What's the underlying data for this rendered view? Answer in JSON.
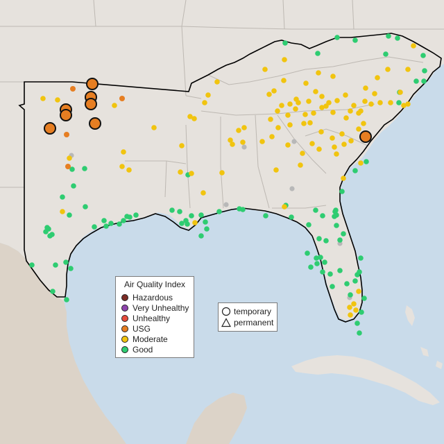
{
  "legend": {
    "title": "Air Quality Index",
    "categories": [
      {
        "label": "Hazardous",
        "color": "#7b2d26"
      },
      {
        "label": "Very Unhealthy",
        "color": "#8e44ad"
      },
      {
        "label": "Unhealthy",
        "color": "#e74c3c"
      },
      {
        "label": "USG",
        "color": "#e67e22"
      },
      {
        "label": "Moderate",
        "color": "#f1c40f"
      },
      {
        "label": "Good",
        "color": "#2ecc71"
      }
    ]
  },
  "monitor_types": [
    {
      "label": "temporary",
      "icon": "circle-icon"
    },
    {
      "label": "permanent",
      "icon": "triangle-icon"
    }
  ],
  "colors": {
    "land": "#e6e2dd",
    "water": "#c9dbea",
    "state_border": "#bdb8b2",
    "region_outline": "#000000",
    "no_data": "#b8b8b8"
  }
}
